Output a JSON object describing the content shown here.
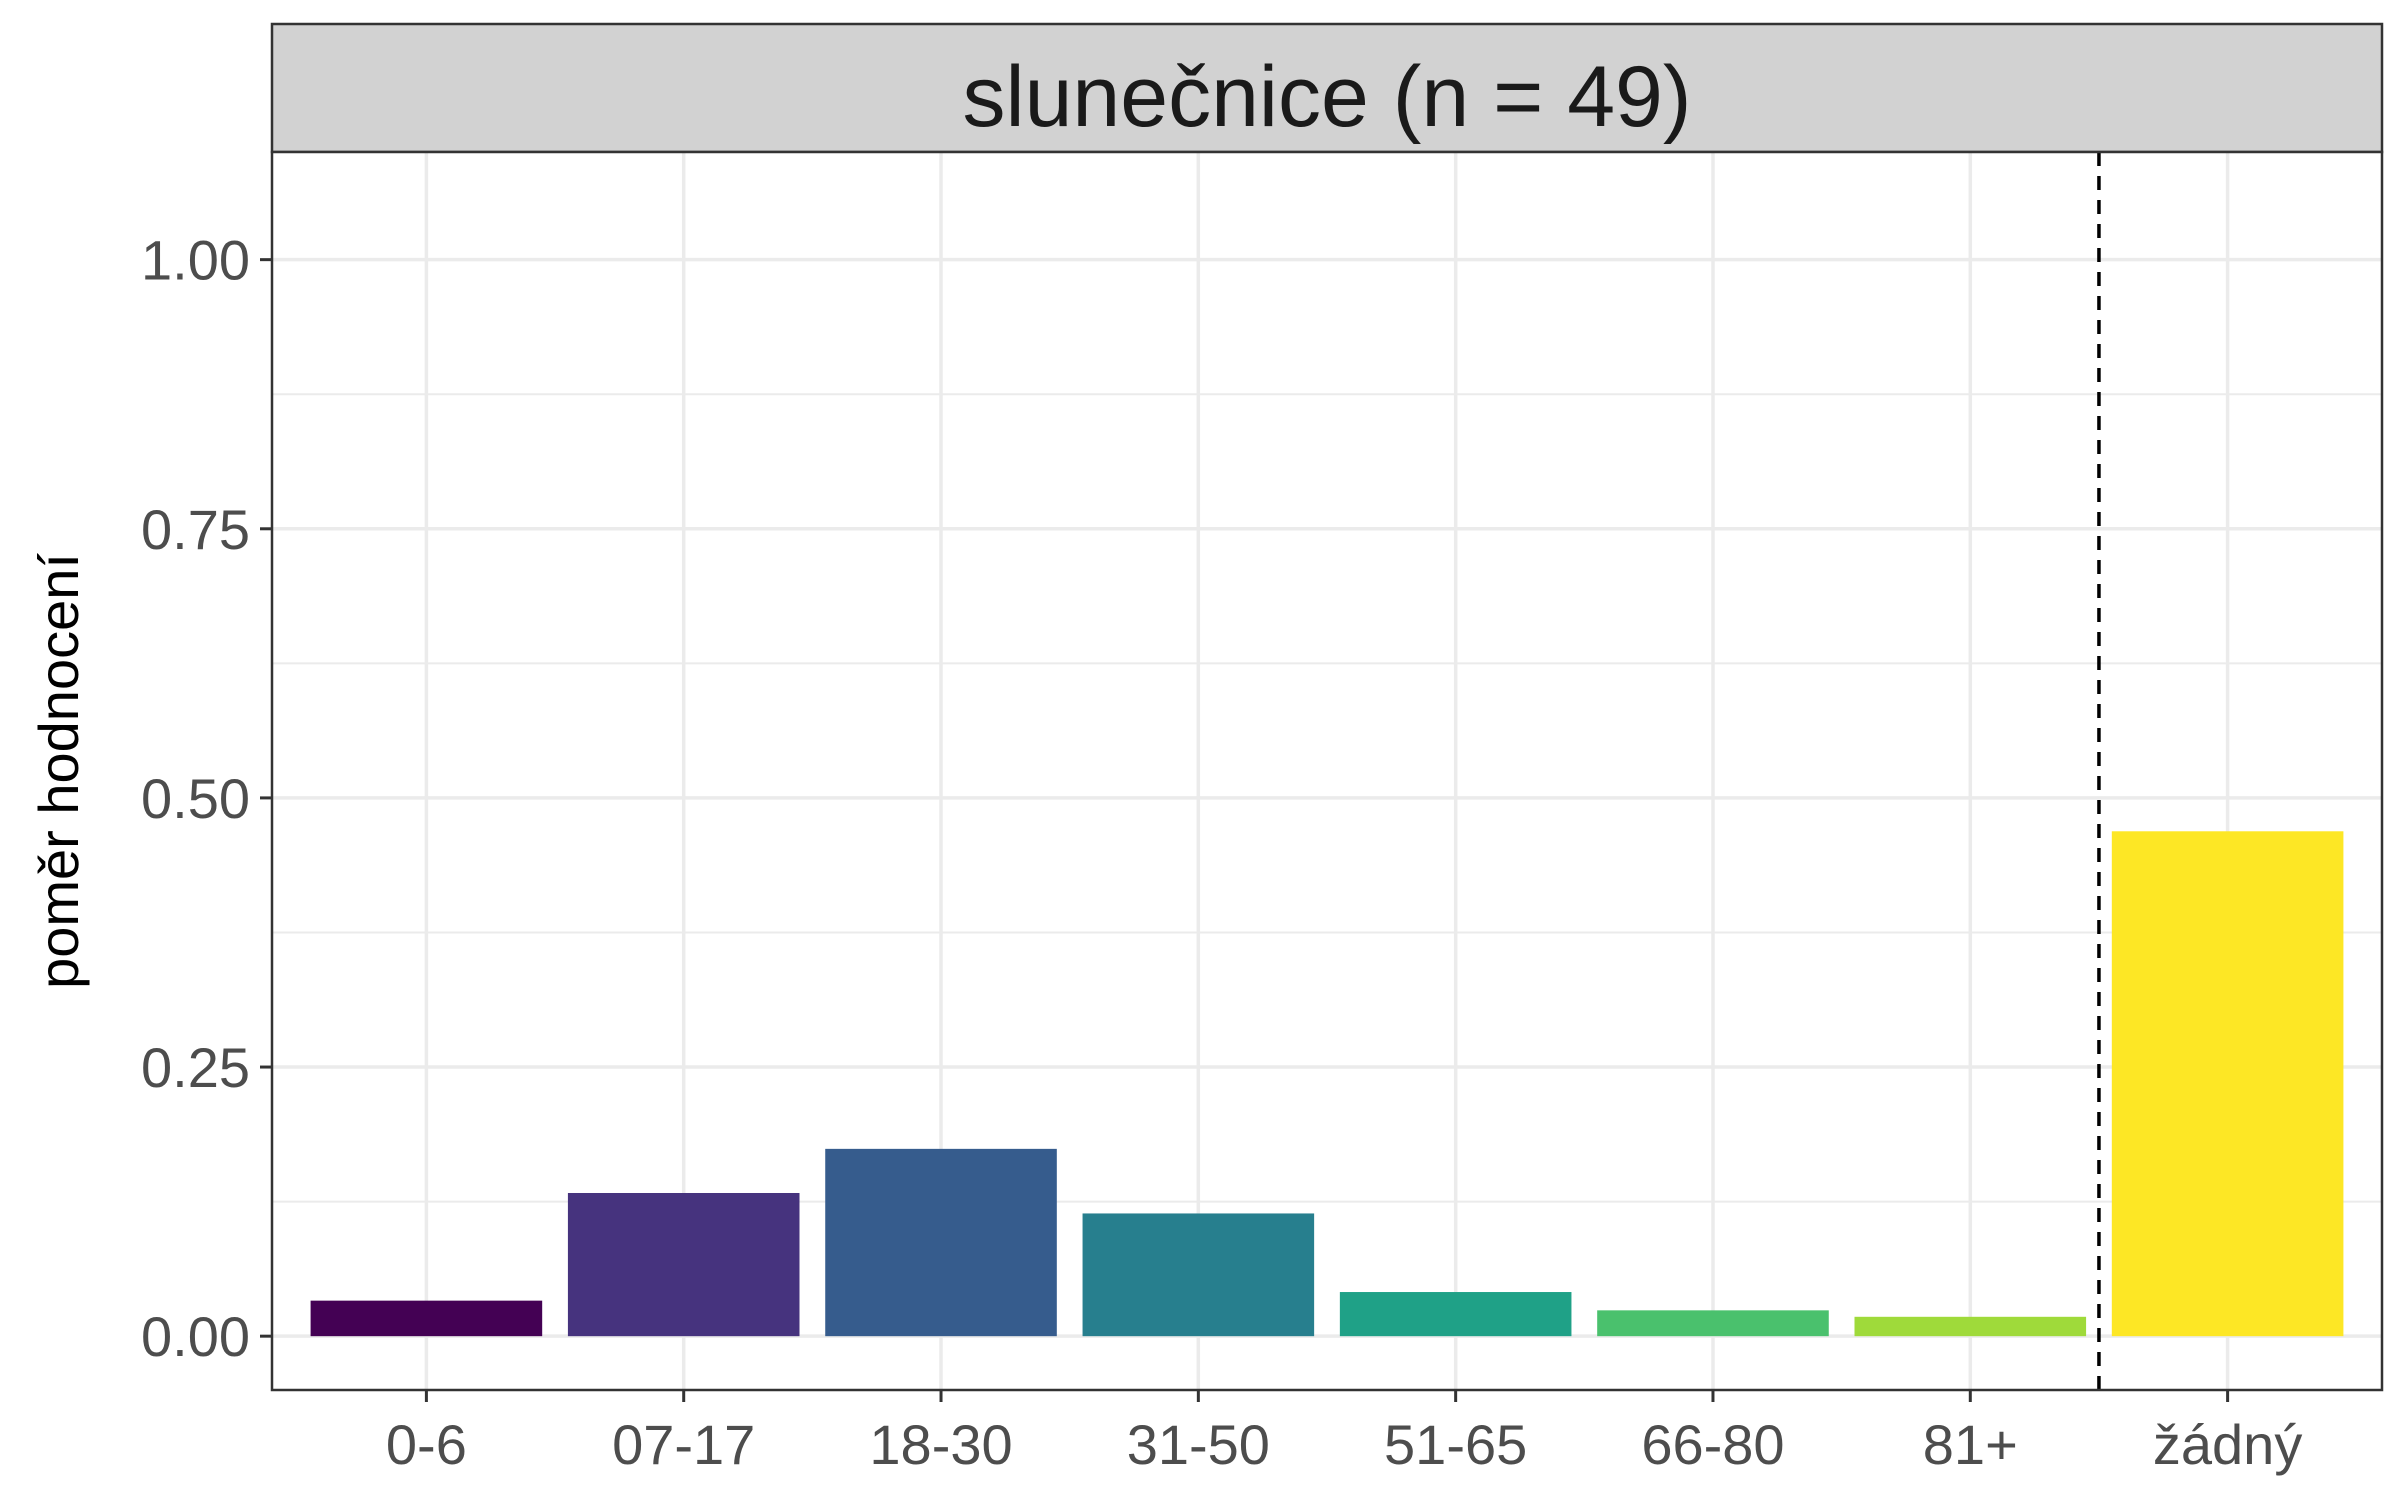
{
  "chart_data": {
    "type": "bar",
    "title": "slunečnice (n = 49)",
    "xlabel": "",
    "ylabel": "poměr hodnocení",
    "categories": [
      "0-6",
      "07-17",
      "18-30",
      "31-50",
      "51-65",
      "66-80",
      "81+",
      "žádný"
    ],
    "values": [
      0.033,
      0.133,
      0.174,
      0.114,
      0.041,
      0.024,
      0.018,
      0.469
    ],
    "colors": [
      "#440154",
      "#46337E",
      "#365C8D",
      "#277F8E",
      "#1FA187",
      "#4AC16D",
      "#9FDA3A",
      "#FDE725"
    ],
    "ylim": [
      -0.05,
      1.1
    ],
    "yticks": [
      0,
      0.25,
      0.5,
      0.75,
      1.0
    ],
    "ytick_labels": [
      "0.00",
      "0.25",
      "0.50",
      "0.75",
      "1.00"
    ],
    "reference_line": {
      "between": [
        "81+",
        "žádný"
      ],
      "style": "dashed"
    },
    "grid": true,
    "legend": "none"
  }
}
